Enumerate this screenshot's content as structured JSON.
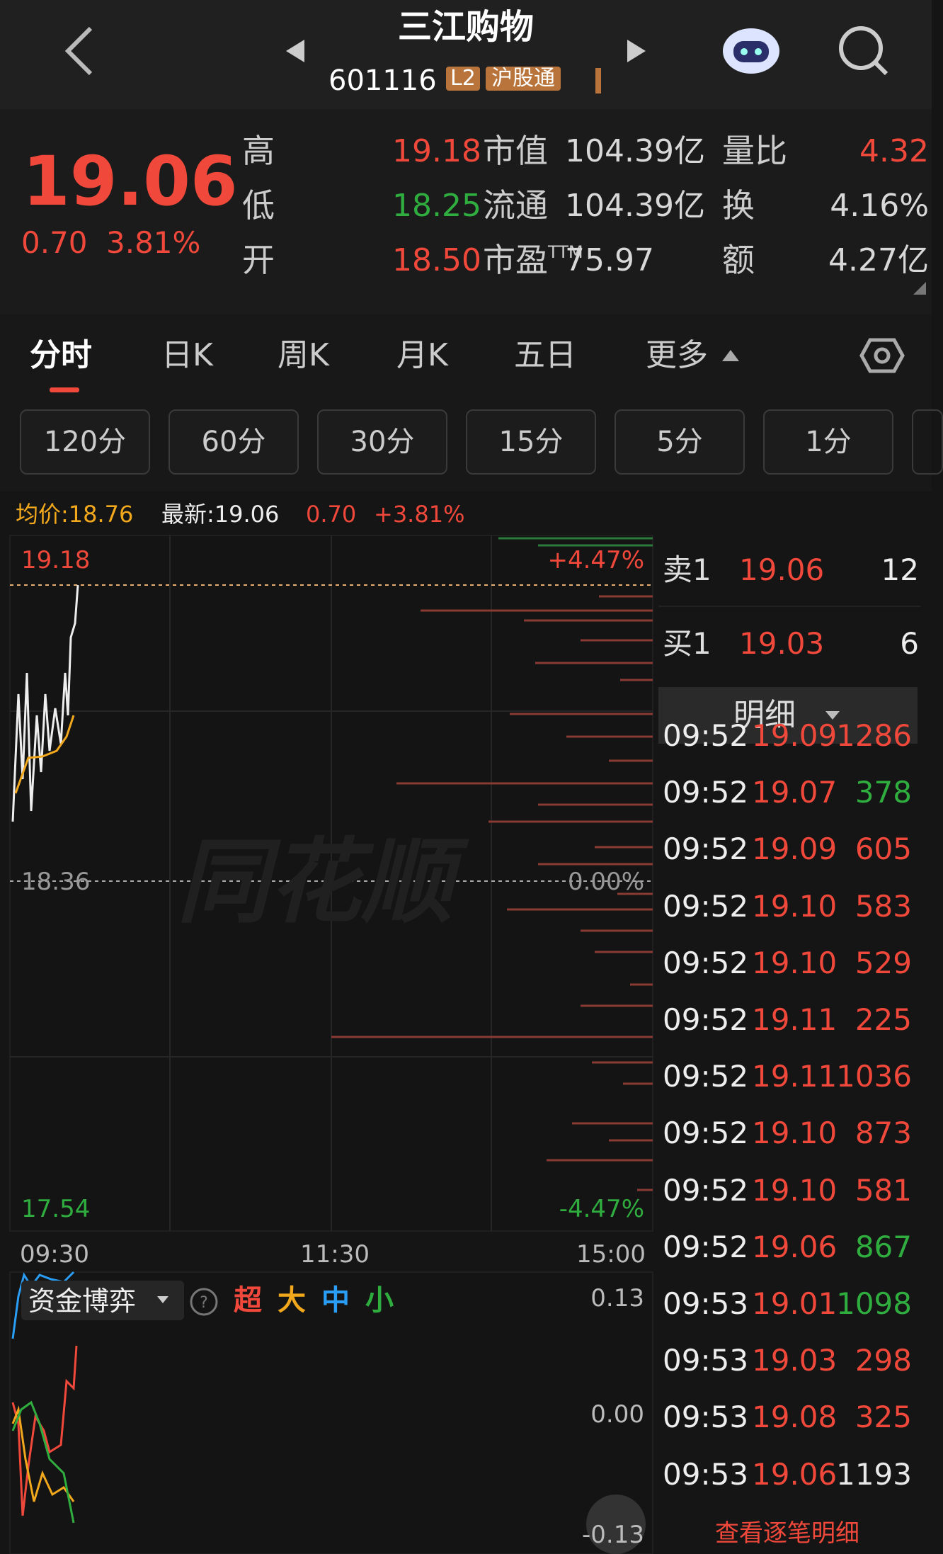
{
  "header": {
    "title": "三江购物",
    "code": "601116",
    "badge_level": "L2",
    "badge_connect": "沪股通"
  },
  "quote": {
    "price": "19.06",
    "change": "0.70",
    "change_pct": "3.81%",
    "stats": [
      {
        "label": "高",
        "value": "19.18",
        "color": "#f0483a"
      },
      {
        "label": "低",
        "value": "18.25",
        "color": "#2fae3f"
      },
      {
        "label": "开",
        "value": "18.50",
        "color": "#f0483a"
      },
      {
        "label": "市值",
        "value": "104.39亿",
        "color": "#d8d8d8"
      },
      {
        "label": "流通",
        "value": "104.39亿",
        "color": "#d8d8d8"
      },
      {
        "label": "市盈",
        "label_sup": "TTM",
        "value": "75.97",
        "color": "#d8d8d8"
      },
      {
        "label": "量比",
        "value": "4.32",
        "color": "#f0483a"
      },
      {
        "label": "换",
        "value": "4.16%",
        "color": "#d8d8d8"
      },
      {
        "label": "额",
        "value": "4.27亿",
        "color": "#d8d8d8"
      }
    ]
  },
  "tabs": [
    "分时",
    "日K",
    "周K",
    "月K",
    "五日",
    "更多"
  ],
  "intervals": [
    "120分",
    "60分",
    "30分",
    "15分",
    "5分",
    "1分"
  ],
  "summary": {
    "avg": "均价:18.76",
    "latest": "最新:19.06",
    "change": "0.70",
    "change_pct": "+3.81%"
  },
  "chart": {
    "high": "19.18",
    "high_pct": "+4.47%",
    "mid": "18.36",
    "mid_pct": "0.00%",
    "low": "17.54",
    "low_pct": "-4.47%",
    "times": [
      "09:30",
      "11:30",
      "15:00"
    ],
    "watermark": "同花顺"
  },
  "fund": {
    "title": "资金博弈",
    "legend": [
      {
        "name": "超",
        "color": "#f0483a"
      },
      {
        "name": "大",
        "color": "#f2a81d"
      },
      {
        "name": "中",
        "color": "#2a9df4"
      },
      {
        "name": "小",
        "color": "#2fae3f"
      }
    ],
    "axis": [
      "0.13",
      "0.00",
      "-0.13"
    ]
  },
  "orderbook": {
    "ask": {
      "label": "卖1",
      "price": "19.06",
      "volume": "12"
    },
    "bid": {
      "label": "买1",
      "price": "19.03",
      "volume": "6"
    }
  },
  "details": {
    "title": "明细",
    "footer": "查看逐笔明细",
    "trades": [
      {
        "time": "09:52",
        "price": "19.09",
        "volume": "1286",
        "color": "#f0483a"
      },
      {
        "time": "09:52",
        "price": "19.07",
        "volume": "378",
        "color": "#2fae3f"
      },
      {
        "time": "09:52",
        "price": "19.09",
        "volume": "605",
        "color": "#f0483a"
      },
      {
        "time": "09:52",
        "price": "19.10",
        "volume": "583",
        "color": "#f0483a"
      },
      {
        "time": "09:52",
        "price": "19.10",
        "volume": "529",
        "color": "#f0483a"
      },
      {
        "time": "09:52",
        "price": "19.11",
        "volume": "225",
        "color": "#f0483a"
      },
      {
        "time": "09:52",
        "price": "19.11",
        "volume": "1036",
        "color": "#f0483a"
      },
      {
        "time": "09:52",
        "price": "19.10",
        "volume": "873",
        "color": "#f0483a"
      },
      {
        "time": "09:52",
        "price": "19.10",
        "volume": "581",
        "color": "#f0483a"
      },
      {
        "time": "09:52",
        "price": "19.06",
        "volume": "867",
        "color": "#2fae3f"
      },
      {
        "time": "09:53",
        "price": "19.01",
        "volume": "1098",
        "color": "#2fae3f"
      },
      {
        "time": "09:53",
        "price": "19.03",
        "volume": "298",
        "color": "#f0483a"
      },
      {
        "time": "09:53",
        "price": "19.08",
        "volume": "325",
        "color": "#f0483a"
      },
      {
        "time": "09:53",
        "price": "19.06",
        "volume": "1193",
        "color": "#e8e8e8"
      }
    ]
  }
}
